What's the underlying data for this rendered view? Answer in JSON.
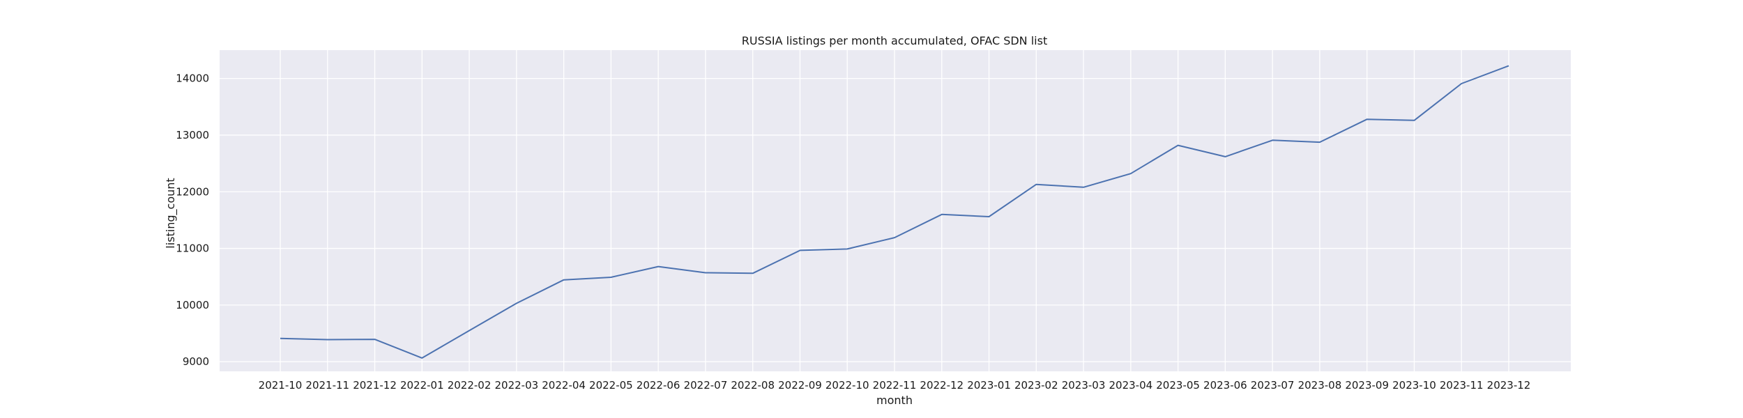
{
  "chart_data": {
    "type": "line",
    "title": "RUSSIA listings per month accumulated, OFAC SDN list",
    "xlabel": "month",
    "ylabel": "listing_count",
    "categories": [
      "2021-10",
      "2021-11",
      "2021-12",
      "2022-01",
      "2022-02",
      "2022-03",
      "2022-04",
      "2022-05",
      "2022-06",
      "2022-07",
      "2022-08",
      "2022-09",
      "2022-10",
      "2022-11",
      "2022-12",
      "2023-01",
      "2023-02",
      "2023-03",
      "2023-04",
      "2023-05",
      "2023-06",
      "2023-07",
      "2023-08",
      "2023-09",
      "2023-10",
      "2023-11",
      "2023-12"
    ],
    "series": [
      {
        "values": [
          9410,
          9390,
          9395,
          9065,
          9550,
          10030,
          10445,
          10490,
          10680,
          10570,
          10560,
          10965,
          10990,
          11190,
          11600,
          11560,
          12130,
          12080,
          12320,
          12820,
          12620,
          12910,
          12875,
          13280,
          13260,
          13910,
          14225
        ],
        "color": "#4c72b0"
      }
    ],
    "yticks": [
      9000,
      10000,
      11000,
      12000,
      13000,
      14000
    ],
    "ylim": [
      8830,
      14500
    ],
    "grid": true,
    "background_color": "#eaeaf2",
    "grid_color": "#ffffff"
  }
}
